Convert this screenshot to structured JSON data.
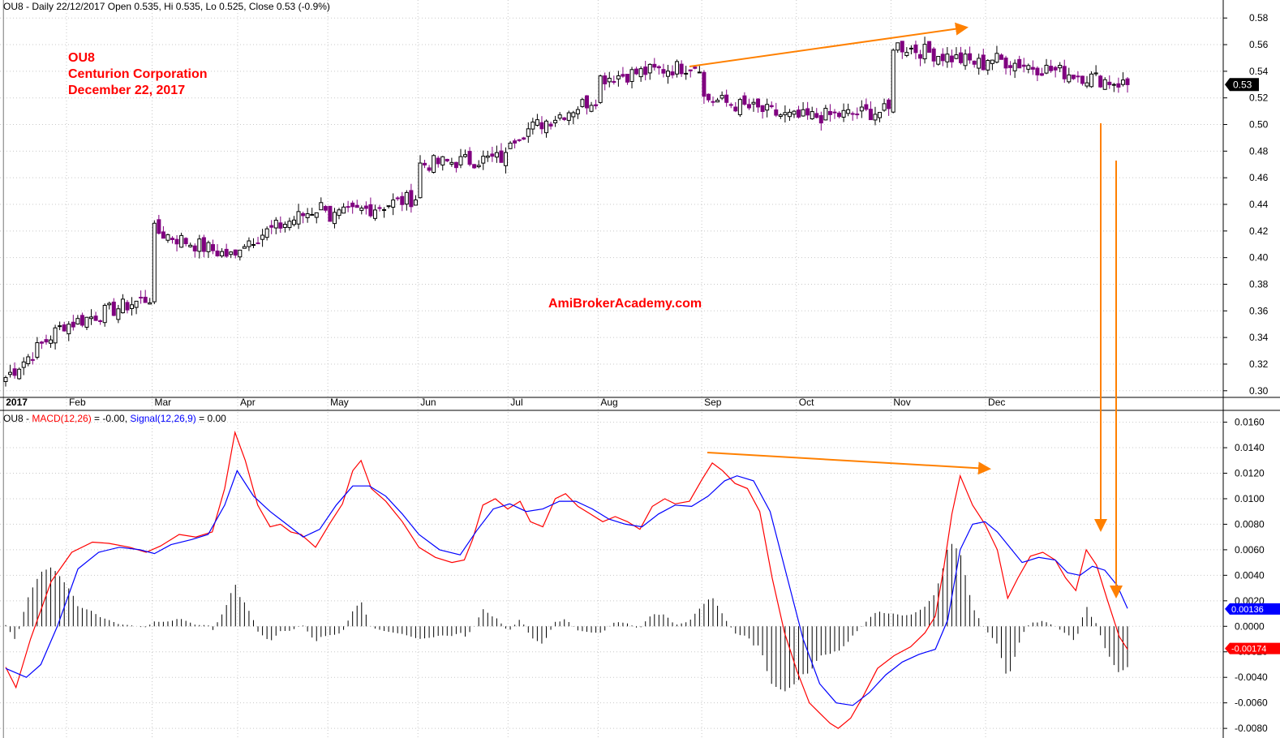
{
  "chart_data": [
    {
      "type": "candlestick",
      "symbol": "OU8",
      "header": "OU8 - Daily 22/12/2017 Open 0.535, Hi 0.535, Lo 0.525, Close 0.53 (-0.9%)",
      "annotations": [
        "OU8",
        "Centurion Corporation",
        "December 22, 2017"
      ],
      "watermark": "AmiBrokerAcademy.com",
      "last_price_label": "0.53",
      "ylim": [
        0.295,
        0.585
      ],
      "y_ticks": [
        "0.58",
        "0.56",
        "0.54",
        "0.52",
        "0.50",
        "0.48",
        "0.46",
        "0.44",
        "0.42",
        "0.40",
        "0.38",
        "0.36",
        "0.34",
        "0.32",
        "0.30"
      ],
      "month_labels": [
        "2017",
        "Feb",
        "Mar",
        "Apr",
        "May",
        "Jun",
        "Jul",
        "Aug",
        "Sep",
        "Oct",
        "Nov",
        "Dec"
      ],
      "month_label_bold": "2017",
      "monthly_close": {
        "2017-01": [
          0.31,
          0.35
        ],
        "2017-02": [
          0.35,
          0.37
        ],
        "2017-03": [
          0.42,
          0.4
        ],
        "2017-04": [
          0.41,
          0.44
        ],
        "2017-05": [
          0.43,
          0.445
        ],
        "2017-06": [
          0.47,
          0.475
        ],
        "2017-07": [
          0.49,
          0.52
        ],
        "2017-08": [
          0.535,
          0.545
        ],
        "2017-09": [
          0.52,
          0.505
        ],
        "2017-10": [
          0.505,
          0.51
        ],
        "2017-11": [
          0.56,
          0.545
        ],
        "2017-12": [
          0.55,
          0.53
        ]
      },
      "candle_colors": {
        "up": "#ffffff",
        "down": "#800080"
      },
      "trendline": {
        "from": [
          "Aug",
          0.545
        ],
        "to": [
          "Nov",
          0.578
        ],
        "color": "#ff8000"
      }
    },
    {
      "type": "line",
      "header_prefix": "OU8 - ",
      "series": [
        {
          "name": "MACD(12,26)",
          "header_value": " = -0.00, ",
          "color": "#ff0000",
          "points": [
            [
              0,
              -0.0032
            ],
            [
              5,
              -0.0048
            ],
            [
              12,
              -0.001
            ],
            [
              22,
              0.0035
            ],
            [
              32,
              0.0058
            ],
            [
              42,
              0.0066
            ],
            [
              50,
              0.0065
            ],
            [
              60,
              0.0062
            ],
            [
              68,
              0.0058
            ],
            [
              75,
              0.0063
            ],
            [
              84,
              0.0072
            ],
            [
              92,
              0.007
            ],
            [
              100,
              0.0074
            ],
            [
              106,
              0.0108
            ],
            [
              111,
              0.0152
            ],
            [
              116,
              0.013
            ],
            [
              122,
              0.0095
            ],
            [
              128,
              0.0078
            ],
            [
              133,
              0.008
            ],
            [
              138,
              0.0074
            ],
            [
              143,
              0.0072
            ],
            [
              150,
              0.0062
            ],
            [
              157,
              0.0081
            ],
            [
              163,
              0.0096
            ],
            [
              168,
              0.0122
            ],
            [
              172,
              0.013
            ],
            [
              177,
              0.0108
            ],
            [
              184,
              0.0098
            ],
            [
              192,
              0.0082
            ],
            [
              200,
              0.0062
            ],
            [
              208,
              0.0054
            ],
            [
              216,
              0.005
            ],
            [
              222,
              0.0052
            ],
            [
              226,
              0.0068
            ],
            [
              231,
              0.0095
            ],
            [
              237,
              0.01
            ],
            [
              243,
              0.0092
            ],
            [
              249,
              0.0098
            ],
            [
              254,
              0.0082
            ],
            [
              260,
              0.0078
            ],
            [
              266,
              0.01
            ],
            [
              271,
              0.0104
            ],
            [
              277,
              0.0094
            ],
            [
              283,
              0.0088
            ],
            [
              289,
              0.0082
            ],
            [
              295,
              0.0086
            ],
            [
              301,
              0.0082
            ],
            [
              307,
              0.0076
            ],
            [
              313,
              0.0094
            ],
            [
              319,
              0.01
            ],
            [
              324,
              0.0096
            ],
            [
              331,
              0.0098
            ],
            [
              337,
              0.0115
            ],
            [
              342,
              0.0128
            ],
            [
              347,
              0.0122
            ],
            [
              353,
              0.0112
            ],
            [
              359,
              0.0108
            ],
            [
              365,
              0.009
            ],
            [
              371,
              0.0038
            ],
            [
              377,
              -0.0005
            ],
            [
              383,
              -0.0035
            ],
            [
              389,
              -0.006
            ],
            [
              394,
              -0.0068
            ],
            [
              399,
              -0.0076
            ],
            [
              403,
              -0.008
            ],
            [
              409,
              -0.0072
            ],
            [
              415,
              -0.0055
            ],
            [
              422,
              -0.0033
            ],
            [
              430,
              -0.0023
            ],
            [
              438,
              -0.0016
            ],
            [
              445,
              -0.0005
            ],
            [
              450,
              0.0008
            ],
            [
              454,
              0.0045
            ],
            [
              458,
              0.0088
            ],
            [
              462,
              0.0118
            ],
            [
              468,
              0.0095
            ],
            [
              474,
              0.008
            ],
            [
              480,
              0.006
            ],
            [
              485,
              0.0022
            ],
            [
              490,
              0.0038
            ],
            [
              496,
              0.0055
            ],
            [
              502,
              0.0058
            ],
            [
              508,
              0.0052
            ],
            [
              513,
              0.0038
            ],
            [
              518,
              0.0028
            ],
            [
              523,
              0.006
            ],
            [
              528,
              0.0048
            ],
            [
              533,
              0.0022
            ],
            [
              539,
              -0.0008
            ],
            [
              543,
              -0.0018
            ]
          ]
        },
        {
          "name": "Signal(12,26,9)",
          "header_value": " = 0.00",
          "color": "#0000ff",
          "points": [
            [
              0,
              -0.0033
            ],
            [
              10,
              -0.004
            ],
            [
              17,
              -0.003
            ],
            [
              25,
              0.0
            ],
            [
              35,
              0.0045
            ],
            [
              45,
              0.0058
            ],
            [
              55,
              0.0062
            ],
            [
              65,
              0.006
            ],
            [
              72,
              0.0057
            ],
            [
              80,
              0.0064
            ],
            [
              90,
              0.0068
            ],
            [
              98,
              0.0072
            ],
            [
              106,
              0.0095
            ],
            [
              112,
              0.0122
            ],
            [
              120,
              0.0102
            ],
            [
              128,
              0.009
            ],
            [
              136,
              0.008
            ],
            [
              144,
              0.007
            ],
            [
              152,
              0.0076
            ],
            [
              160,
              0.0095
            ],
            [
              168,
              0.011
            ],
            [
              176,
              0.011
            ],
            [
              184,
              0.0102
            ],
            [
              192,
              0.0088
            ],
            [
              200,
              0.0072
            ],
            [
              210,
              0.006
            ],
            [
              220,
              0.0056
            ],
            [
              228,
              0.0075
            ],
            [
              236,
              0.0092
            ],
            [
              244,
              0.0096
            ],
            [
              252,
              0.009
            ],
            [
              260,
              0.0092
            ],
            [
              268,
              0.0098
            ],
            [
              276,
              0.0098
            ],
            [
              284,
              0.0092
            ],
            [
              292,
              0.0084
            ],
            [
              300,
              0.008
            ],
            [
              308,
              0.0078
            ],
            [
              316,
              0.0088
            ],
            [
              324,
              0.0095
            ],
            [
              332,
              0.0094
            ],
            [
              340,
              0.0102
            ],
            [
              348,
              0.0114
            ],
            [
              354,
              0.0118
            ],
            [
              362,
              0.0114
            ],
            [
              370,
              0.009
            ],
            [
              378,
              0.004
            ],
            [
              386,
              -0.001
            ],
            [
              394,
              -0.0045
            ],
            [
              402,
              -0.006
            ],
            [
              410,
              -0.0062
            ],
            [
              418,
              -0.0052
            ],
            [
              426,
              -0.0038
            ],
            [
              434,
              -0.0028
            ],
            [
              442,
              -0.0022
            ],
            [
              450,
              -0.0018
            ],
            [
              456,
              0.0005
            ],
            [
              462,
              0.006
            ],
            [
              468,
              0.008
            ],
            [
              474,
              0.0082
            ],
            [
              480,
              0.0074
            ],
            [
              486,
              0.0062
            ],
            [
              492,
              0.005
            ],
            [
              500,
              0.0054
            ],
            [
              508,
              0.0052
            ],
            [
              514,
              0.0042
            ],
            [
              520,
              0.004
            ],
            [
              526,
              0.0047
            ],
            [
              532,
              0.0044
            ],
            [
              538,
              0.0032
            ],
            [
              543,
              0.0014
            ]
          ]
        }
      ],
      "histogram_name": "MACD - Signal",
      "ylim": [
        -0.0085,
        0.0168
      ],
      "y_ticks": [
        "0.0160",
        "0.0140",
        "0.0120",
        "0.0100",
        "0.0080",
        "0.0060",
        "0.0040",
        "0.0020",
        "0.0000",
        "-0.0020",
        "-0.0040",
        "-0.0060",
        "-0.0080"
      ],
      "last_labels": [
        {
          "text": "0.00136",
          "bg": "#0000ff",
          "value": 0.00136
        },
        {
          "text": "-0.00174",
          "bg": "#ff0000",
          "value": -0.00174
        }
      ]
    }
  ],
  "colors": {
    "arrow": "#ff8000",
    "grid": "#c8c8c8",
    "month_grid": "#999999"
  }
}
